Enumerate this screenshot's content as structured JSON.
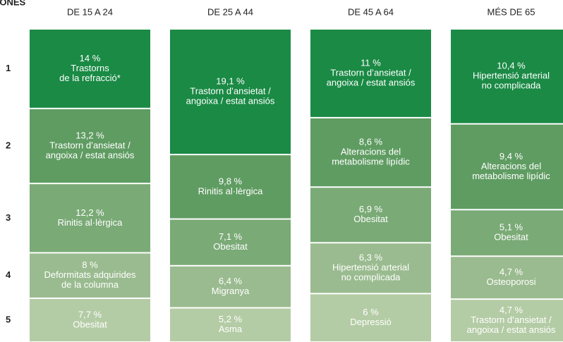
{
  "chart_data": {
    "type": "stacked_column_share",
    "title": "DONES",
    "categories": [
      "DE 15 A 24",
      "DE 25 A 44",
      "DE 45 A 64",
      "MÉS DE 65"
    ],
    "series": [
      {
        "name": "1",
        "color": "#1a8a45",
        "values": [
          14,
          19.1,
          11,
          10.4
        ],
        "value_labels": [
          "14 %",
          "19,1 %",
          "11 %",
          "10,4 %"
        ],
        "labels": [
          [
            "Trastorns",
            "de la refracció*"
          ],
          [
            "Trastorn d’ansietat /",
            "angoixa / estat ansiós"
          ],
          [
            "Trastorn d’ansietat /",
            "angoixa / estat ansiós"
          ],
          [
            "Hipertensió arterial",
            "no complicada"
          ]
        ]
      },
      {
        "name": "2",
        "color": "#5f9c62",
        "values": [
          13.2,
          9.8,
          8.6,
          9.4
        ],
        "value_labels": [
          "13,2 %",
          "9,8 %",
          "8,6 %",
          "9,4 %"
        ],
        "labels": [
          [
            "Trastorn d’ansietat /",
            "angoixa / estat ansiós"
          ],
          [
            "Rinitis al·lèrgica"
          ],
          [
            "Alteracions del",
            "metabolisme lipídic"
          ],
          [
            "Alteracions del",
            "metabolisme lipídic"
          ]
        ]
      },
      {
        "name": "3",
        "color": "#7aaa76",
        "values": [
          12.2,
          7.1,
          6.9,
          5.1
        ],
        "value_labels": [
          "12,2 %",
          "7,1 %",
          "6,9 %",
          "5,1 %"
        ],
        "labels": [
          [
            "Rinitis al·lèrgica"
          ],
          [
            "Obesitat"
          ],
          [
            "Obesitat"
          ],
          [
            "Obesitat"
          ]
        ]
      },
      {
        "name": "4",
        "color": "#9abb8f",
        "values": [
          8,
          6.4,
          6.3,
          4.7
        ],
        "value_labels": [
          "8 %",
          "6,4 %",
          "6,3 %",
          "4,7 %"
        ],
        "labels": [
          [
            "Deformitats adquirides",
            "de la columna"
          ],
          [
            "Migranya"
          ],
          [
            "Hipertensió arterial",
            "no complicada"
          ],
          [
            "Osteoporosi"
          ]
        ]
      },
      {
        "name": "5",
        "color": "#b4cca5",
        "values": [
          7.7,
          5.2,
          6,
          4.7
        ],
        "value_labels": [
          "7,7 %",
          "5,2 %",
          "6 %",
          "4,7 %"
        ],
        "labels": [
          [
            "Obesitat"
          ],
          [
            "Asma"
          ],
          [
            "Depressió"
          ],
          [
            "Trastorn d’ansietat /",
            "angoixa / estat ansiós"
          ]
        ]
      }
    ]
  }
}
